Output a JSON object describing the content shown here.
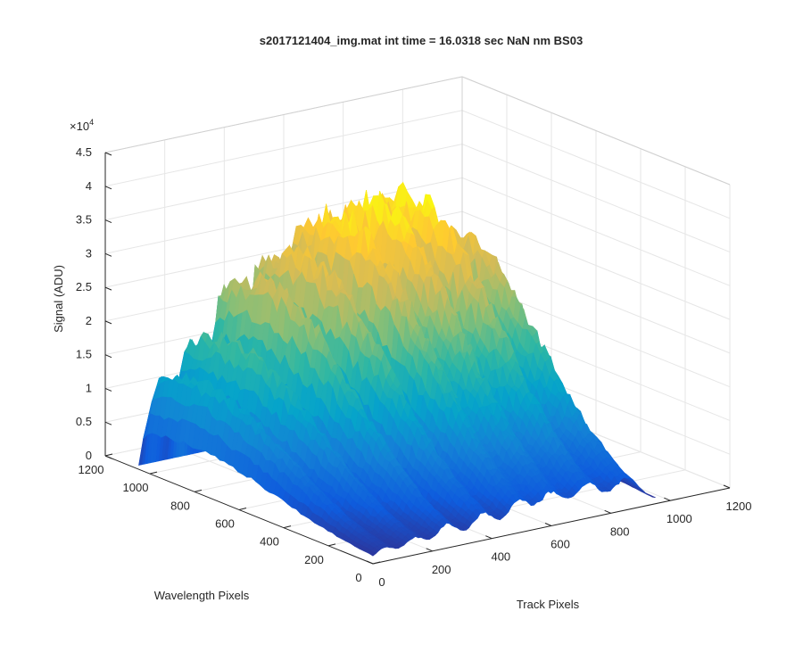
{
  "chart_data": {
    "type": "surface",
    "title": "s2017121404_img.mat int time = 16.0318 sec  NaN nm BS03",
    "xlabel": "Track Pixels",
    "ylabel": "Wavelength Pixels",
    "zlabel": "Signal (ADU)",
    "z_multiplier_label": "×10",
    "z_multiplier_exponent": "4",
    "xlim": [
      0,
      1200
    ],
    "ylim": [
      0,
      1200
    ],
    "zlim": [
      0,
      45000
    ],
    "x_ticks": [
      "0",
      "200",
      "400",
      "600",
      "800",
      "1000",
      "1200"
    ],
    "y_ticks": [
      "0",
      "200",
      "400",
      "600",
      "800",
      "1000",
      "1200"
    ],
    "z_ticks": [
      "0",
      "0.5",
      "1",
      "1.5",
      "2",
      "2.5",
      "3",
      "3.5",
      "4",
      "4.5"
    ],
    "grid": true,
    "colormap": "parula",
    "colormap_stops": [
      "#352a87",
      "#0f5cdd",
      "#1481d6",
      "#06a4ca",
      "#2eb7a4",
      "#87bf77",
      "#d1bb59",
      "#fec832",
      "#f9fb0e"
    ],
    "tracks": [
      {
        "x_center": 40,
        "peak": 15000
      },
      {
        "x_center": 140,
        "peak": 20000
      },
      {
        "x_center": 250,
        "peak": 28000
      },
      {
        "x_center": 370,
        "peak": 31000
      },
      {
        "x_center": 490,
        "peak": 35000
      },
      {
        "x_center": 600,
        "peak": 36000
      },
      {
        "x_center": 720,
        "peak": 36000
      },
      {
        "x_center": 850,
        "peak": 31000
      }
    ],
    "wavelength_extent": [
      0,
      1050
    ],
    "track_extent": [
      0,
      950
    ]
  }
}
